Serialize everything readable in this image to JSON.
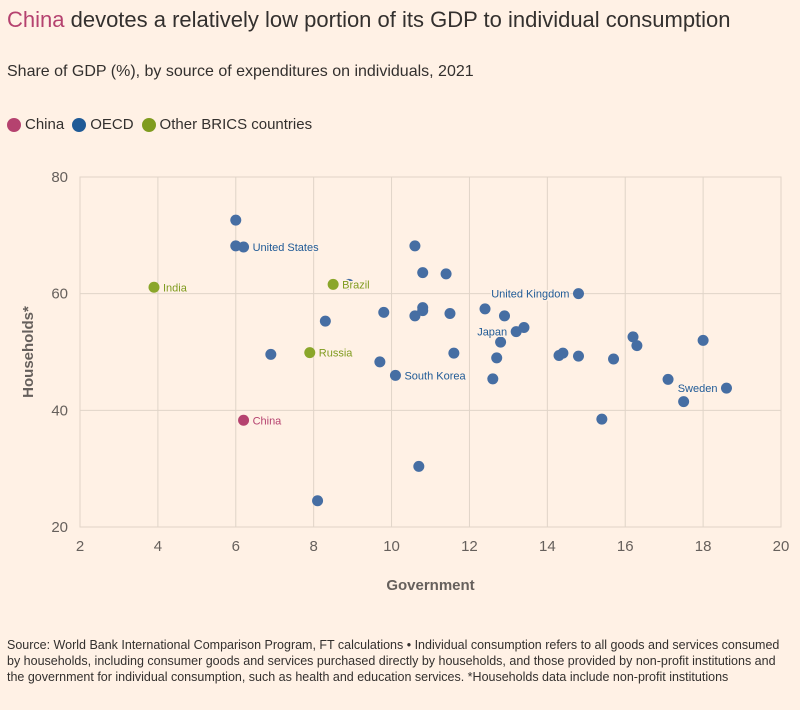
{
  "title": {
    "highlight": "China",
    "rest": " devotes a relatively low portion of its GDP to individual consumption"
  },
  "subtitle": "Share of GDP (%), by source of expenditures on individuals, 2021",
  "legend": [
    {
      "label": "China",
      "color": "#b5426f"
    },
    {
      "label": "OECD",
      "color": "#1f5a96"
    },
    {
      "label": "Other BRICS countries",
      "color": "#7f9b1e"
    }
  ],
  "colors": {
    "china": "#b5426f",
    "oecd": "#466ea3",
    "brics": "#8aa62a",
    "oecd_label": "#1f5a96",
    "brics_label": "#7f9b1e",
    "grid": "#e0d4c8",
    "axis_text": "#66605c"
  },
  "chart_data": {
    "type": "scatter",
    "xlabel": "Government",
    "ylabel": "Households*",
    "xlim": [
      2,
      20
    ],
    "ylim": [
      20,
      80
    ],
    "xticks": [
      2,
      4,
      6,
      8,
      10,
      12,
      14,
      16,
      18,
      20
    ],
    "yticks": [
      20,
      40,
      60,
      80
    ],
    "grid": true,
    "legend_position": "top-left",
    "series": [
      {
        "name": "China",
        "group": "china",
        "points": [
          {
            "x": 6.2,
            "y": 38.3,
            "label": "China"
          }
        ]
      },
      {
        "name": "Other BRICS countries",
        "group": "brics",
        "points": [
          {
            "x": 3.9,
            "y": 61.1,
            "label": "India"
          },
          {
            "x": 8.5,
            "y": 61.6,
            "label": "Brazil"
          },
          {
            "x": 7.9,
            "y": 49.9,
            "label": "Russia"
          }
        ]
      },
      {
        "name": "OECD",
        "group": "oecd",
        "points": [
          {
            "x": 6.0,
            "y": 72.6
          },
          {
            "x": 6.0,
            "y": 68.2
          },
          {
            "x": 6.2,
            "y": 68.0,
            "label": "United States"
          },
          {
            "x": 6.9,
            "y": 49.6
          },
          {
            "x": 8.1,
            "y": 24.5
          },
          {
            "x": 8.3,
            "y": 55.3
          },
          {
            "x": 8.9,
            "y": 61.6
          },
          {
            "x": 9.7,
            "y": 48.3
          },
          {
            "x": 9.8,
            "y": 56.8
          },
          {
            "x": 10.1,
            "y": 46.0,
            "label": "South Korea"
          },
          {
            "x": 10.6,
            "y": 68.2
          },
          {
            "x": 10.6,
            "y": 56.2
          },
          {
            "x": 10.7,
            "y": 30.4
          },
          {
            "x": 10.8,
            "y": 63.6
          },
          {
            "x": 10.8,
            "y": 57.6
          },
          {
            "x": 10.8,
            "y": 57.1
          },
          {
            "x": 11.4,
            "y": 63.4
          },
          {
            "x": 11.5,
            "y": 56.6
          },
          {
            "x": 11.6,
            "y": 49.8
          },
          {
            "x": 12.4,
            "y": 57.4
          },
          {
            "x": 12.6,
            "y": 45.4
          },
          {
            "x": 12.7,
            "y": 49.0
          },
          {
            "x": 12.8,
            "y": 51.7
          },
          {
            "x": 12.9,
            "y": 56.2
          },
          {
            "x": 13.2,
            "y": 53.5,
            "label": "Japan"
          },
          {
            "x": 13.4,
            "y": 54.2
          },
          {
            "x": 14.3,
            "y": 49.4
          },
          {
            "x": 14.4,
            "y": 49.8
          },
          {
            "x": 14.8,
            "y": 49.3
          },
          {
            "x": 14.8,
            "y": 60.0,
            "label": "United Kingdom"
          },
          {
            "x": 15.4,
            "y": 38.5
          },
          {
            "x": 15.7,
            "y": 48.8
          },
          {
            "x": 16.2,
            "y": 52.6
          },
          {
            "x": 16.3,
            "y": 51.1
          },
          {
            "x": 17.1,
            "y": 45.3
          },
          {
            "x": 17.5,
            "y": 41.5
          },
          {
            "x": 18.0,
            "y": 52.0
          },
          {
            "x": 18.6,
            "y": 43.8,
            "label": "Sweden"
          }
        ]
      }
    ]
  },
  "source": "Source: World Bank International Comparison Program, FT calculations • Individual consumption refers to all goods and services consumed by households, including consumer goods and services purchased directly by households, and those provided by non-profit institutions and the government for individual consumption, such as health and education services. *Households data include non-profit institutions"
}
